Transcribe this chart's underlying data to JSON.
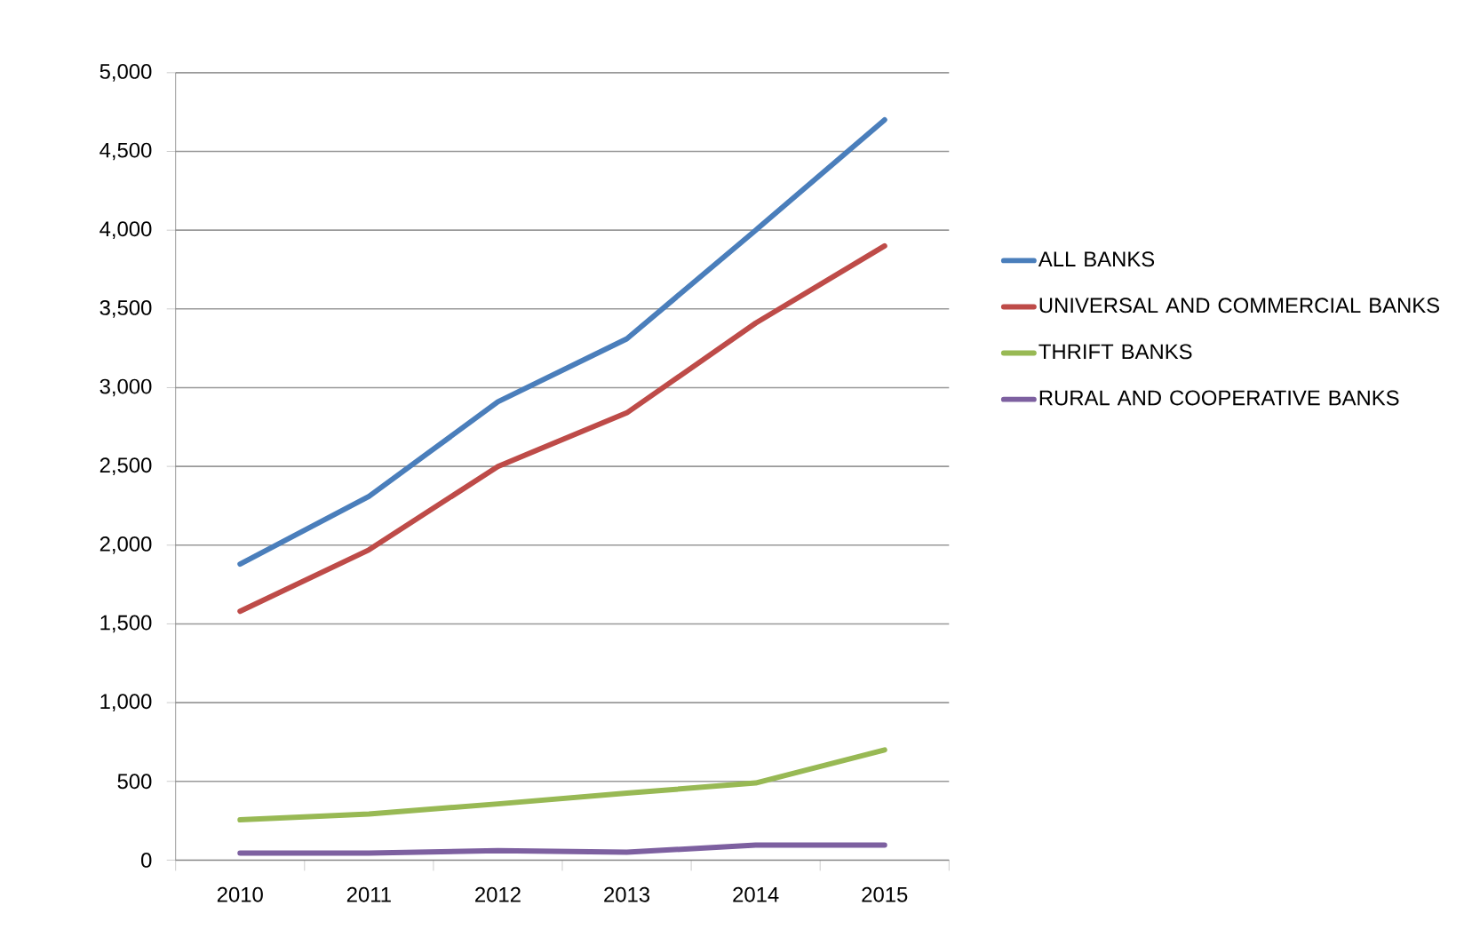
{
  "chart_data": {
    "type": "line",
    "categories": [
      "2010",
      "2011",
      "2012",
      "2013",
      "2014",
      "2015"
    ],
    "series": [
      {
        "name": "ALL BANKS",
        "color": "#4a7ebb",
        "values": [
          1880,
          2310,
          2910,
          3310,
          4000,
          4700
        ]
      },
      {
        "name": "UNIVERSAL AND COMMERCIAL BANKS",
        "color": "#be4b48",
        "values": [
          1580,
          1970,
          2500,
          2840,
          3410,
          3900
        ]
      },
      {
        "name": "THRIFT BANKS",
        "color": "#98b954",
        "values": [
          256,
          293,
          357,
          425,
          490,
          700
        ]
      },
      {
        "name": "RURAL AND COOPERATIVE BANKS",
        "color": "#7d60a0",
        "values": [
          45,
          45,
          60,
          50,
          95,
          95
        ]
      }
    ],
    "ylim": [
      0,
      5000
    ],
    "yticks": [
      0,
      500,
      {
        "value": 1000,
        "label": "1,000"
      },
      {
        "value": 1500,
        "label": "1,500"
      },
      {
        "value": 2000,
        "label": "2,000"
      },
      {
        "value": 2500,
        "label": "2,500"
      },
      {
        "value": 3000,
        "label": "3,000"
      },
      {
        "value": 3500,
        "label": "3,500"
      },
      {
        "value": 4000,
        "label": "4,000"
      },
      {
        "value": 4500,
        "label": "4,500"
      },
      {
        "value": 5000,
        "label": "5,000"
      }
    ],
    "grid": "y",
    "legend": "right",
    "marker": "none",
    "line_style": "solid"
  }
}
